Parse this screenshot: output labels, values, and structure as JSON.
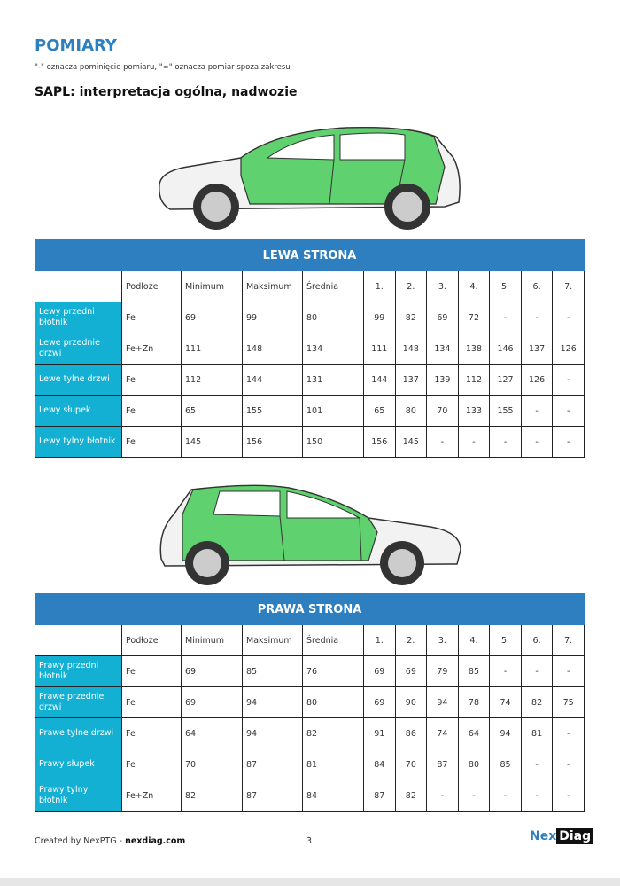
{
  "header": {
    "title": "POMIARY",
    "note": "\"-\" oznacza pominięcie pomiaru, \"∞\" oznacza pomiar spoza zakresu",
    "subtitle": "SAPL: interpretacja ogólna, nadwozie"
  },
  "columns": [
    "",
    "Podłoże",
    "Minimum",
    "Maksimum",
    "Średnia",
    "1.",
    "2.",
    "3.",
    "4.",
    "5.",
    "6.",
    "7."
  ],
  "colors": {
    "accent": "#2e7fc0",
    "row_label": "#14b0d4",
    "car_paint": "#5fd16e"
  },
  "left": {
    "title": "LEWA STRONA",
    "rows": [
      {
        "label": "Lewy przedni błotnik",
        "cells": [
          "Fe",
          "69",
          "99",
          "80",
          "99",
          "82",
          "69",
          "72",
          "-",
          "-",
          "-"
        ]
      },
      {
        "label": "Lewe przednie drzwi",
        "cells": [
          "Fe+Zn",
          "111",
          "148",
          "134",
          "111",
          "148",
          "134",
          "138",
          "146",
          "137",
          "126"
        ]
      },
      {
        "label": "Lewe tylne drzwi",
        "cells": [
          "Fe",
          "112",
          "144",
          "131",
          "144",
          "137",
          "139",
          "112",
          "127",
          "126",
          "-"
        ]
      },
      {
        "label": "Lewy słupek",
        "cells": [
          "Fe",
          "65",
          "155",
          "101",
          "65",
          "80",
          "70",
          "133",
          "155",
          "-",
          "-"
        ]
      },
      {
        "label": "Lewy tylny błotnik",
        "cells": [
          "Fe",
          "145",
          "156",
          "150",
          "156",
          "145",
          "-",
          "-",
          "-",
          "-",
          "-"
        ]
      }
    ]
  },
  "right": {
    "title": "PRAWA STRONA",
    "rows": [
      {
        "label": "Prawy przedni błotnik",
        "cells": [
          "Fe",
          "69",
          "85",
          "76",
          "69",
          "69",
          "79",
          "85",
          "-",
          "-",
          "-"
        ]
      },
      {
        "label": "Prawe przednie drzwi",
        "cells": [
          "Fe",
          "69",
          "94",
          "80",
          "69",
          "90",
          "94",
          "78",
          "74",
          "82",
          "75"
        ]
      },
      {
        "label": "Prawe tylne drzwi",
        "cells": [
          "Fe",
          "64",
          "94",
          "82",
          "91",
          "86",
          "74",
          "64",
          "94",
          "81",
          "-"
        ]
      },
      {
        "label": "Prawy słupek",
        "cells": [
          "Fe",
          "70",
          "87",
          "81",
          "84",
          "70",
          "87",
          "80",
          "85",
          "-",
          "-"
        ]
      },
      {
        "label": "Prawy tylny błotnik",
        "cells": [
          "Fe+Zn",
          "82",
          "87",
          "84",
          "87",
          "82",
          "-",
          "-",
          "-",
          "-",
          "-"
        ]
      }
    ]
  },
  "footer": {
    "created_by": "Created by NexPTG - ",
    "site": "nexdiag.com",
    "page": "3",
    "logo_a": "Nex",
    "logo_b": "Diag"
  }
}
